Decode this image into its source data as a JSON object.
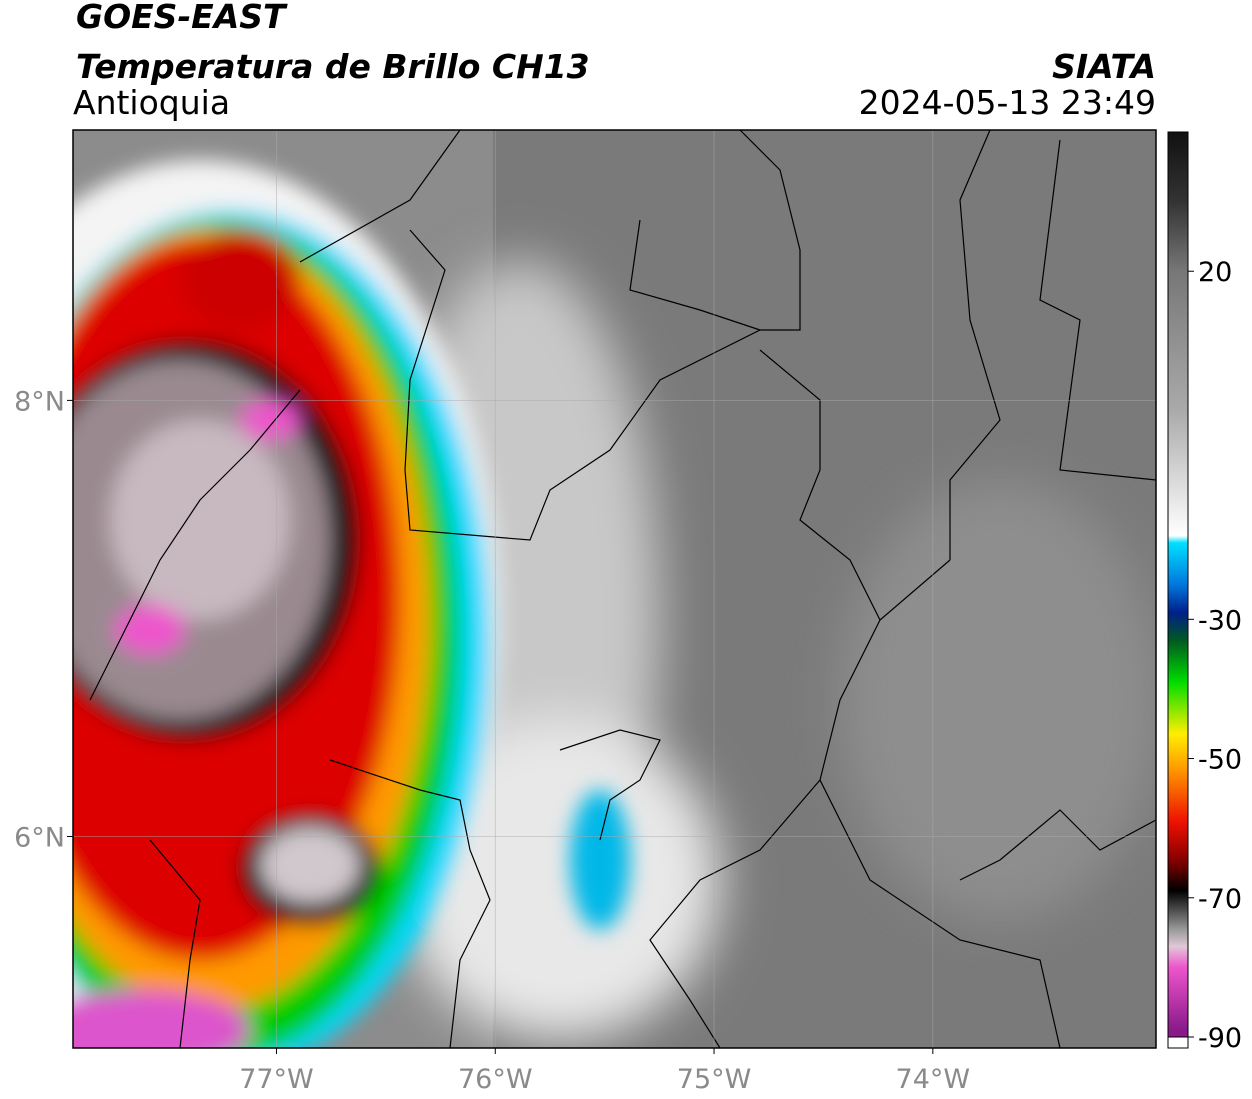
{
  "header": {
    "satellite": "GOES-EAST",
    "product": "Temperatura de Brillo CH13",
    "region": "Antioquia",
    "source": "SIATA",
    "datetime": "2024-05-13 23:49"
  },
  "map": {
    "xlim": [
      -77.93,
      -72.98
    ],
    "ylim": [
      5.03,
      9.24
    ],
    "xticks": [
      {
        "value": -77,
        "label": "77°W"
      },
      {
        "value": -76,
        "label": "76°W"
      },
      {
        "value": -75,
        "label": "75°W"
      },
      {
        "value": -74,
        "label": "74°W"
      }
    ],
    "yticks": [
      {
        "value": 6,
        "label": "6°N"
      },
      {
        "value": 8,
        "label": "8°N"
      }
    ],
    "grid": true
  },
  "colorbar": {
    "lim": [
      -90,
      40
    ],
    "ticks": [
      20,
      -30,
      -50,
      -70,
      -90
    ]
  }
}
